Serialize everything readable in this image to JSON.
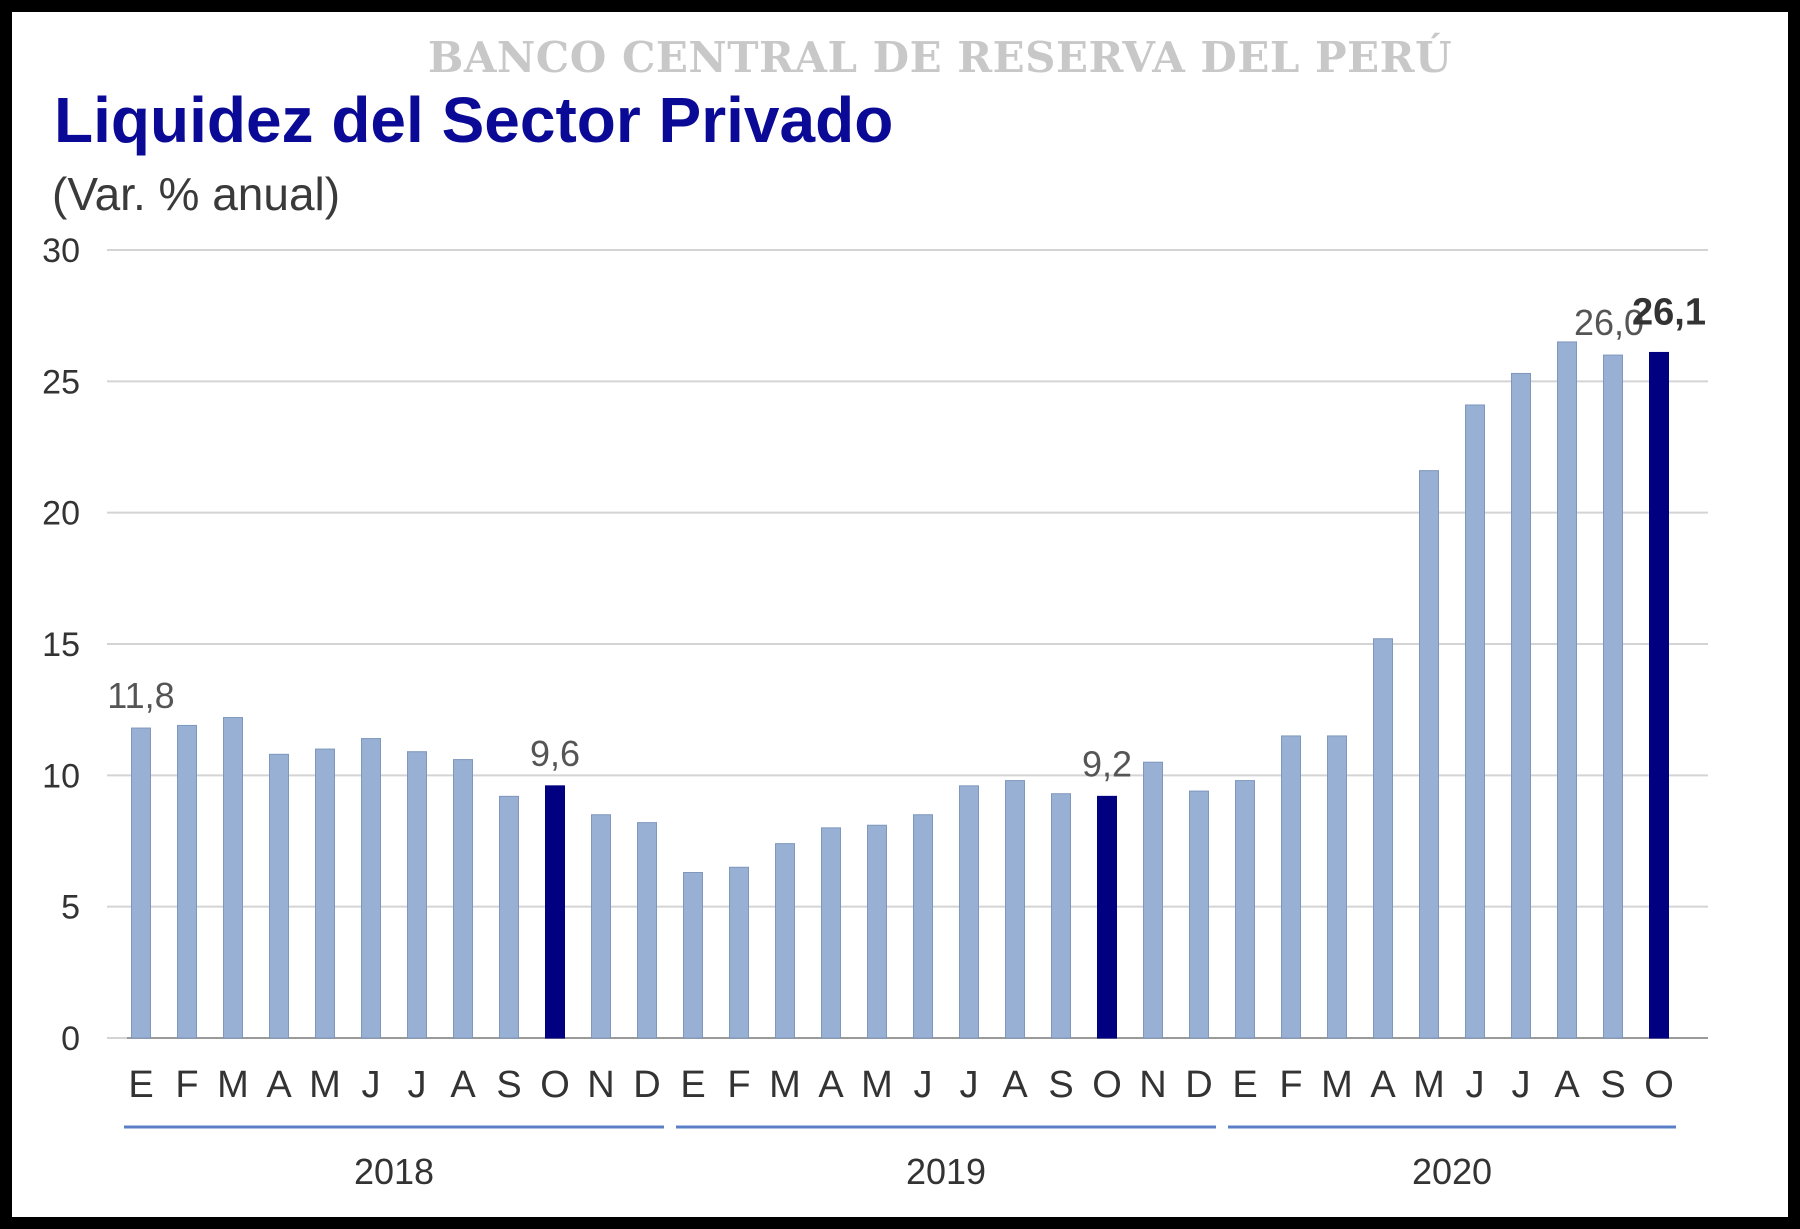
{
  "header": {
    "institution": "BANCO CENTRAL DE RESERVA DEL PERÚ"
  },
  "chart_data": {
    "type": "bar",
    "title": "Liquidez del Sector Privado",
    "subtitle": "(Var. % anual)",
    "xlabel": "",
    "ylabel": "",
    "ylim": [
      0,
      30
    ],
    "yticks": [
      0,
      5,
      10,
      15,
      20,
      25,
      30
    ],
    "grid": true,
    "categories": [
      "E",
      "F",
      "M",
      "A",
      "M",
      "J",
      "J",
      "A",
      "S",
      "O",
      "N",
      "D",
      "E",
      "F",
      "M",
      "A",
      "M",
      "J",
      "J",
      "A",
      "S",
      "O",
      "N",
      "D",
      "E",
      "F",
      "M",
      "A",
      "M",
      "J",
      "J",
      "A",
      "S",
      "O"
    ],
    "year_groups": [
      {
        "label": "2018",
        "start": 0,
        "end": 11
      },
      {
        "label": "2019",
        "start": 12,
        "end": 23
      },
      {
        "label": "2020",
        "start": 24,
        "end": 33
      }
    ],
    "values": [
      11.8,
      11.9,
      12.2,
      10.8,
      11.0,
      11.4,
      10.9,
      10.6,
      9.2,
      9.6,
      8.5,
      8.2,
      6.3,
      6.5,
      7.4,
      8.0,
      8.1,
      8.5,
      9.6,
      9.8,
      9.3,
      9.2,
      10.5,
      9.4,
      9.8,
      11.5,
      11.5,
      15.2,
      21.6,
      24.1,
      25.3,
      26.5,
      26.0,
      26.1
    ],
    "highlighted_indices": [
      9,
      21,
      33
    ],
    "data_labels": [
      {
        "index": 0,
        "text": "11,8",
        "bold": false
      },
      {
        "index": 9,
        "text": "9,6",
        "bold": false
      },
      {
        "index": 21,
        "text": "9,2",
        "bold": false
      },
      {
        "index": 32,
        "text": "26,0",
        "bold": false
      },
      {
        "index": 33,
        "text": "26,1",
        "bold": true
      }
    ],
    "colors": {
      "bar": "#98b0d4",
      "bar_stroke": "#7f97bd",
      "bar_highlight": "#000080",
      "grid": "#d4d4d4",
      "year_line": "#5b7fc7"
    }
  }
}
